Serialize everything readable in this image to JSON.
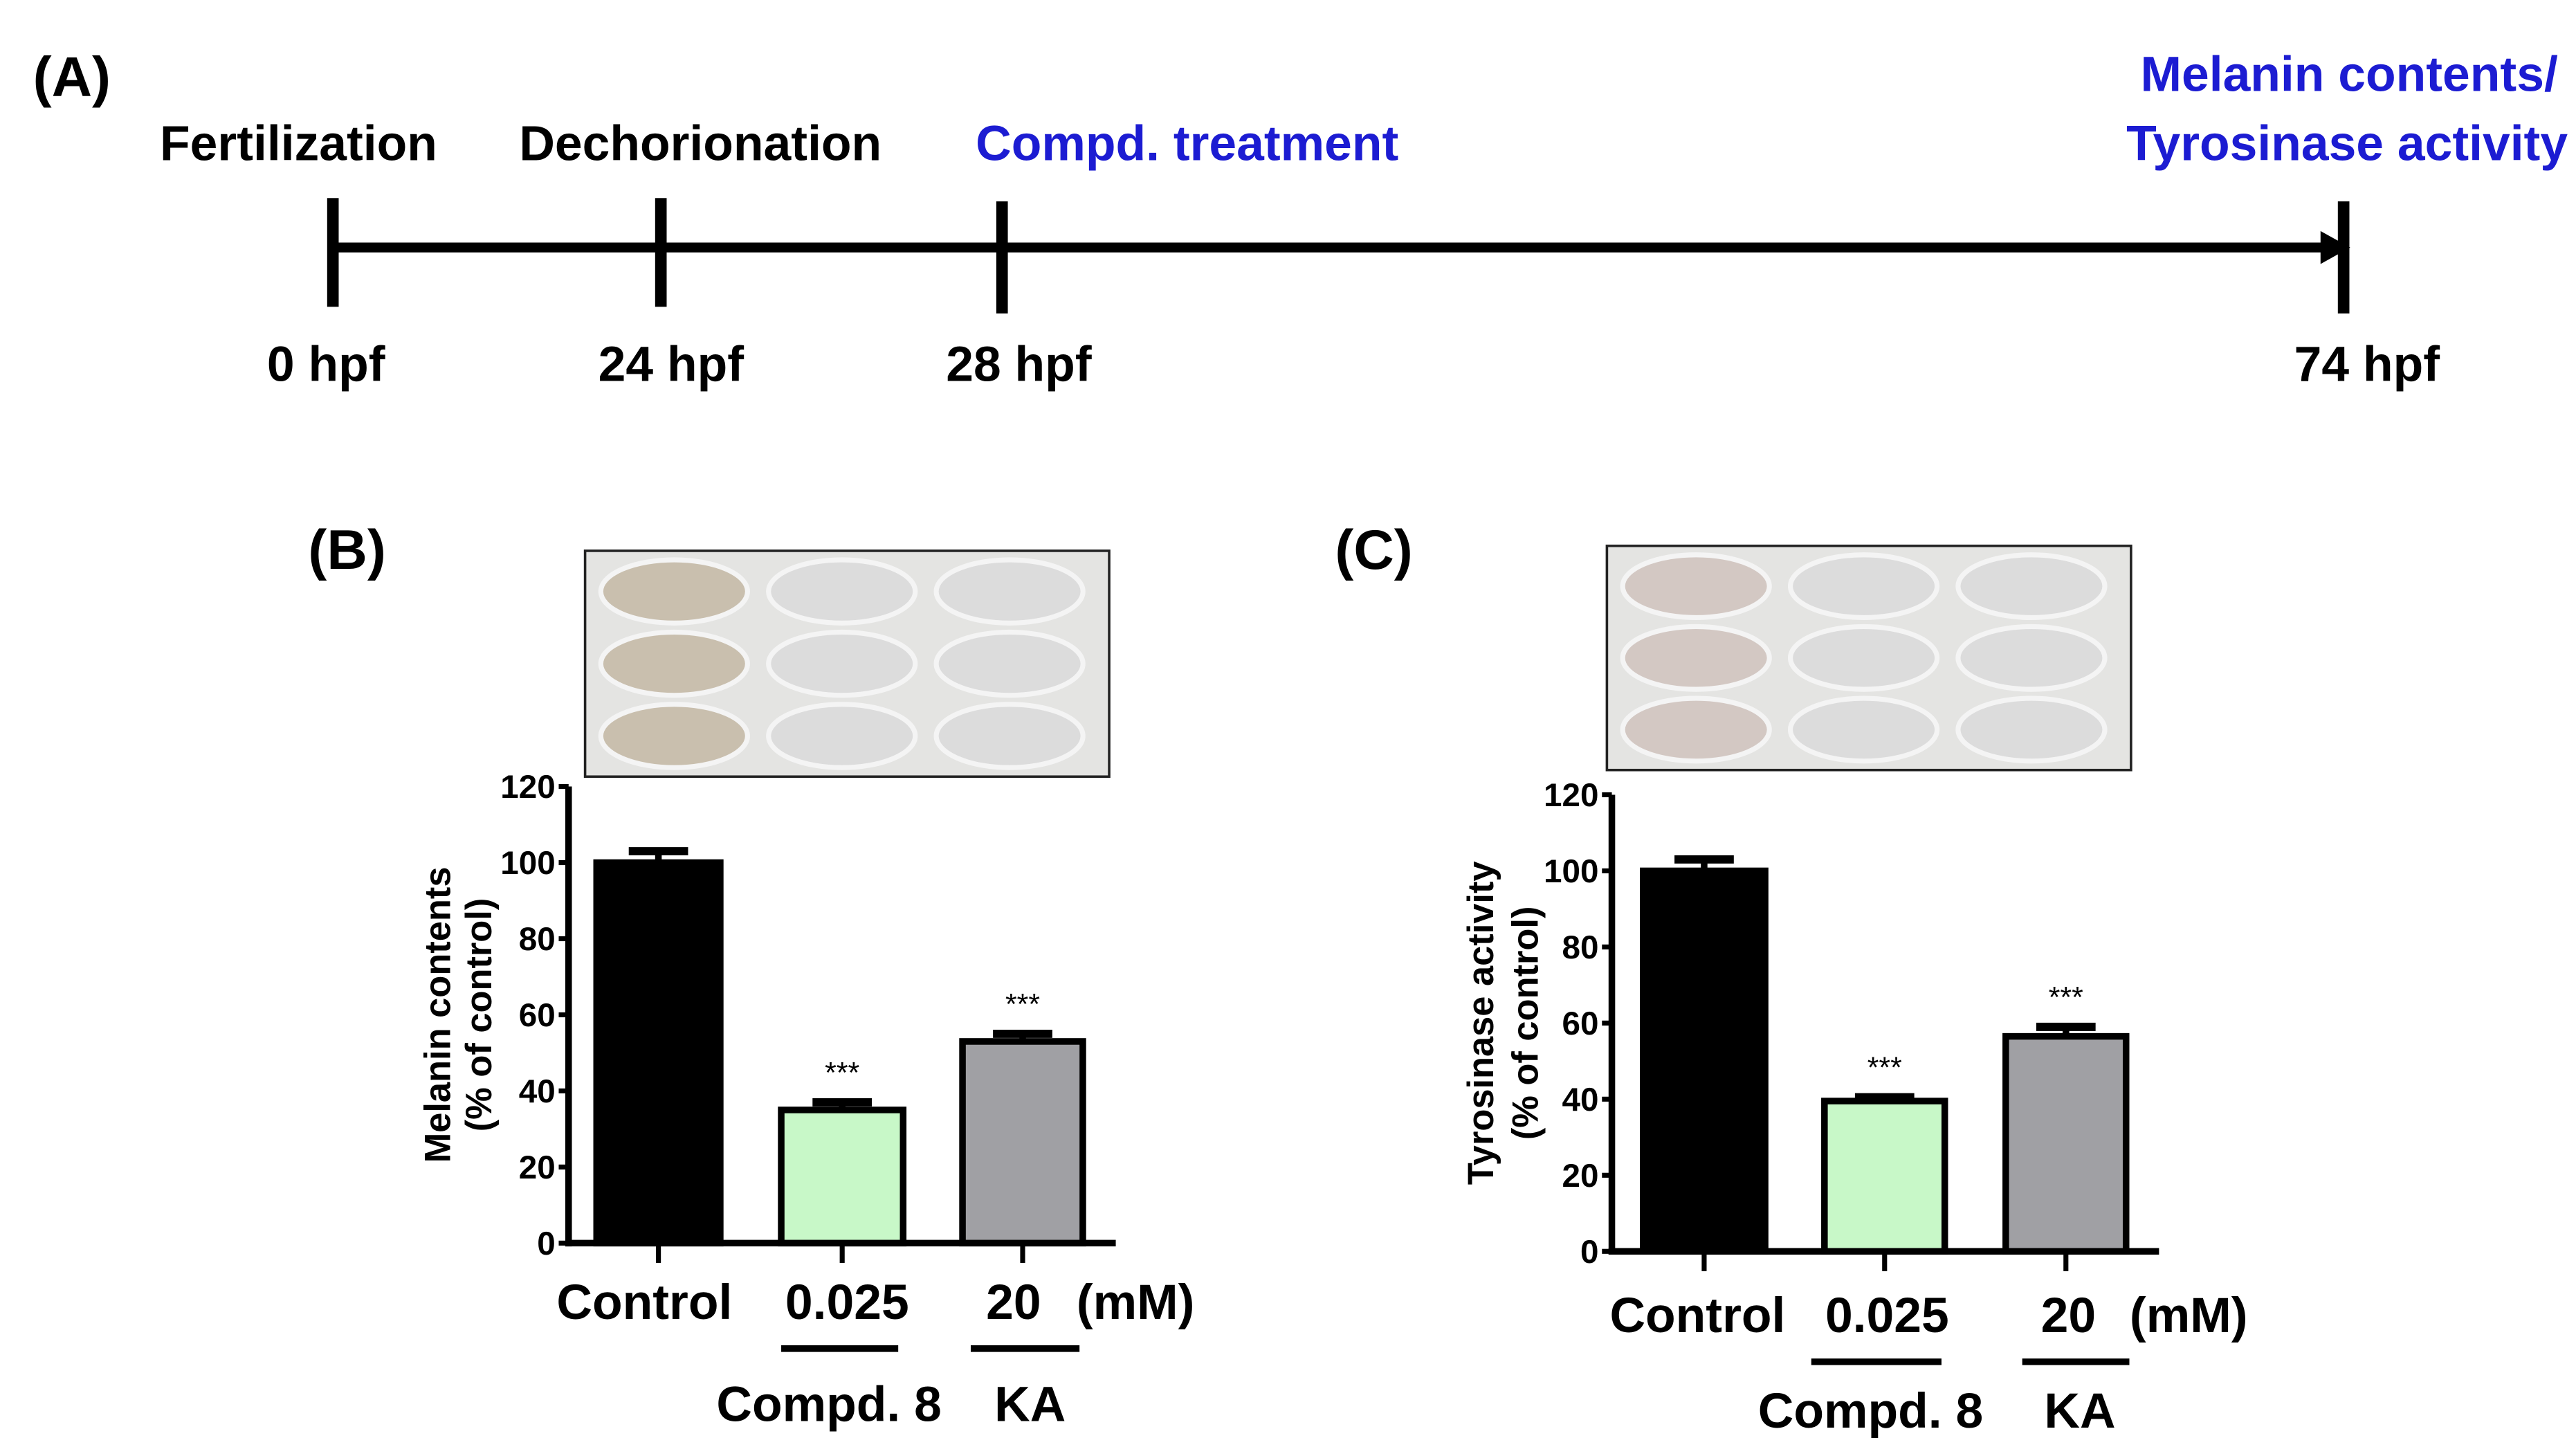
{
  "timeline": {
    "panel_label": "(A)",
    "events": [
      "Fertilization",
      "Dechorionation",
      "Compd. treatment"
    ],
    "endpoint_lines": [
      "Melanin contents/",
      "Tyrosinase activity"
    ],
    "times": [
      "0 hpf",
      "24 hpf",
      "28 hpf",
      "74 hpf"
    ],
    "accent_color": "#1c1cd2"
  },
  "chart_data": [
    {
      "type": "bar",
      "panel_label": "(B)",
      "ylabel_lines": [
        "Melanin contents",
        "(% of control)"
      ],
      "categories": [
        "Control",
        "0.025",
        "20"
      ],
      "unit_label": "(mM)",
      "group_labels": [
        "Compd. 8",
        "KA"
      ],
      "values": [
        100,
        35,
        53
      ],
      "errors": [
        3,
        2,
        2
      ],
      "significance": [
        "",
        "***",
        "***"
      ],
      "colors": [
        "#000000",
        "#c8f8c8",
        "#a0a0a4"
      ],
      "ylim": [
        0,
        120
      ],
      "yticks": [
        "0",
        "20",
        "40",
        "60",
        "80",
        "100",
        "120"
      ]
    },
    {
      "type": "bar",
      "panel_label": "(C)",
      "ylabel_lines": [
        "Tyrosinase activity",
        "(% of control)"
      ],
      "categories": [
        "Control",
        "0.025",
        "20"
      ],
      "unit_label": "(mM)",
      "group_labels": [
        "Compd. 8",
        "KA"
      ],
      "values": [
        100,
        39.5,
        56.5
      ],
      "errors": [
        3,
        1,
        2.5
      ],
      "significance": [
        "",
        "***",
        "***"
      ],
      "colors": [
        "#000000",
        "#c8f8c8",
        "#a0a0a4"
      ],
      "ylim": [
        0,
        120
      ],
      "yticks": [
        "0",
        "20",
        "40",
        "60",
        "80",
        "100",
        "120"
      ]
    }
  ]
}
